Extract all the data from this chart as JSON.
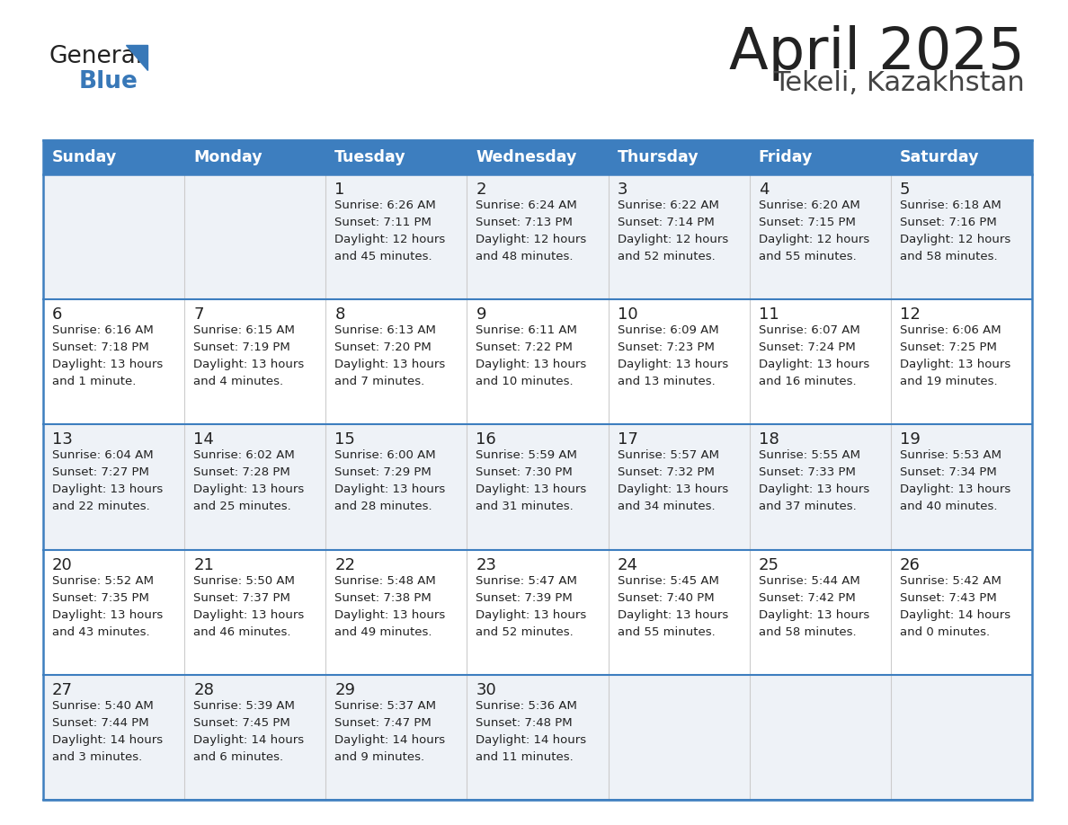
{
  "title": "April 2025",
  "subtitle": "Tekeli, Kazakhstan",
  "days_of_week": [
    "Sunday",
    "Monday",
    "Tuesday",
    "Wednesday",
    "Thursday",
    "Friday",
    "Saturday"
  ],
  "header_bg": "#3d7ebf",
  "header_text": "#ffffff",
  "row_bg_light": "#eef2f7",
  "row_bg_white": "#ffffff",
  "cell_border_color": "#3d7ebf",
  "cell_vline_color": "#cccccc",
  "day_number_color": "#222222",
  "info_text_color": "#222222",
  "title_color": "#222222",
  "subtitle_color": "#444444",
  "logo_general_color": "#222222",
  "logo_blue_color": "#3878b8",
  "weeks": [
    [
      {
        "day": null,
        "info": null
      },
      {
        "day": null,
        "info": null
      },
      {
        "day": 1,
        "info": "Sunrise: 6:26 AM\nSunset: 7:11 PM\nDaylight: 12 hours\nand 45 minutes."
      },
      {
        "day": 2,
        "info": "Sunrise: 6:24 AM\nSunset: 7:13 PM\nDaylight: 12 hours\nand 48 minutes."
      },
      {
        "day": 3,
        "info": "Sunrise: 6:22 AM\nSunset: 7:14 PM\nDaylight: 12 hours\nand 52 minutes."
      },
      {
        "day": 4,
        "info": "Sunrise: 6:20 AM\nSunset: 7:15 PM\nDaylight: 12 hours\nand 55 minutes."
      },
      {
        "day": 5,
        "info": "Sunrise: 6:18 AM\nSunset: 7:16 PM\nDaylight: 12 hours\nand 58 minutes."
      }
    ],
    [
      {
        "day": 6,
        "info": "Sunrise: 6:16 AM\nSunset: 7:18 PM\nDaylight: 13 hours\nand 1 minute."
      },
      {
        "day": 7,
        "info": "Sunrise: 6:15 AM\nSunset: 7:19 PM\nDaylight: 13 hours\nand 4 minutes."
      },
      {
        "day": 8,
        "info": "Sunrise: 6:13 AM\nSunset: 7:20 PM\nDaylight: 13 hours\nand 7 minutes."
      },
      {
        "day": 9,
        "info": "Sunrise: 6:11 AM\nSunset: 7:22 PM\nDaylight: 13 hours\nand 10 minutes."
      },
      {
        "day": 10,
        "info": "Sunrise: 6:09 AM\nSunset: 7:23 PM\nDaylight: 13 hours\nand 13 minutes."
      },
      {
        "day": 11,
        "info": "Sunrise: 6:07 AM\nSunset: 7:24 PM\nDaylight: 13 hours\nand 16 minutes."
      },
      {
        "day": 12,
        "info": "Sunrise: 6:06 AM\nSunset: 7:25 PM\nDaylight: 13 hours\nand 19 minutes."
      }
    ],
    [
      {
        "day": 13,
        "info": "Sunrise: 6:04 AM\nSunset: 7:27 PM\nDaylight: 13 hours\nand 22 minutes."
      },
      {
        "day": 14,
        "info": "Sunrise: 6:02 AM\nSunset: 7:28 PM\nDaylight: 13 hours\nand 25 minutes."
      },
      {
        "day": 15,
        "info": "Sunrise: 6:00 AM\nSunset: 7:29 PM\nDaylight: 13 hours\nand 28 minutes."
      },
      {
        "day": 16,
        "info": "Sunrise: 5:59 AM\nSunset: 7:30 PM\nDaylight: 13 hours\nand 31 minutes."
      },
      {
        "day": 17,
        "info": "Sunrise: 5:57 AM\nSunset: 7:32 PM\nDaylight: 13 hours\nand 34 minutes."
      },
      {
        "day": 18,
        "info": "Sunrise: 5:55 AM\nSunset: 7:33 PM\nDaylight: 13 hours\nand 37 minutes."
      },
      {
        "day": 19,
        "info": "Sunrise: 5:53 AM\nSunset: 7:34 PM\nDaylight: 13 hours\nand 40 minutes."
      }
    ],
    [
      {
        "day": 20,
        "info": "Sunrise: 5:52 AM\nSunset: 7:35 PM\nDaylight: 13 hours\nand 43 minutes."
      },
      {
        "day": 21,
        "info": "Sunrise: 5:50 AM\nSunset: 7:37 PM\nDaylight: 13 hours\nand 46 minutes."
      },
      {
        "day": 22,
        "info": "Sunrise: 5:48 AM\nSunset: 7:38 PM\nDaylight: 13 hours\nand 49 minutes."
      },
      {
        "day": 23,
        "info": "Sunrise: 5:47 AM\nSunset: 7:39 PM\nDaylight: 13 hours\nand 52 minutes."
      },
      {
        "day": 24,
        "info": "Sunrise: 5:45 AM\nSunset: 7:40 PM\nDaylight: 13 hours\nand 55 minutes."
      },
      {
        "day": 25,
        "info": "Sunrise: 5:44 AM\nSunset: 7:42 PM\nDaylight: 13 hours\nand 58 minutes."
      },
      {
        "day": 26,
        "info": "Sunrise: 5:42 AM\nSunset: 7:43 PM\nDaylight: 14 hours\nand 0 minutes."
      }
    ],
    [
      {
        "day": 27,
        "info": "Sunrise: 5:40 AM\nSunset: 7:44 PM\nDaylight: 14 hours\nand 3 minutes."
      },
      {
        "day": 28,
        "info": "Sunrise: 5:39 AM\nSunset: 7:45 PM\nDaylight: 14 hours\nand 6 minutes."
      },
      {
        "day": 29,
        "info": "Sunrise: 5:37 AM\nSunset: 7:47 PM\nDaylight: 14 hours\nand 9 minutes."
      },
      {
        "day": 30,
        "info": "Sunrise: 5:36 AM\nSunset: 7:48 PM\nDaylight: 14 hours\nand 11 minutes."
      },
      {
        "day": null,
        "info": null
      },
      {
        "day": null,
        "info": null
      },
      {
        "day": null,
        "info": null
      }
    ]
  ]
}
